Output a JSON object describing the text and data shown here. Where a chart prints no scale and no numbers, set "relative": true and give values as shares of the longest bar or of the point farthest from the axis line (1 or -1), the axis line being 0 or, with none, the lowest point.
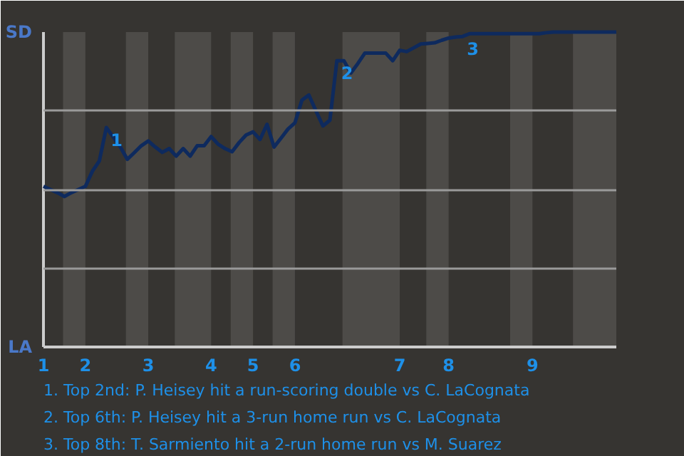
{
  "chart_data": {
    "type": "line",
    "relative": true,
    "categories": [
      "1",
      null,
      null,
      null,
      null,
      null,
      "2",
      null,
      null,
      null,
      null,
      null,
      null,
      null,
      null,
      "3",
      null,
      null,
      null,
      null,
      null,
      null,
      null,
      null,
      "4",
      null,
      null,
      null,
      null,
      null,
      "5",
      null,
      null,
      null,
      null,
      null,
      "6",
      null,
      null,
      null,
      null,
      null,
      null,
      null,
      null,
      null,
      null,
      null,
      null,
      null,
      null,
      "7",
      null,
      null,
      null,
      null,
      null,
      null,
      "8",
      null,
      null,
      null,
      null,
      null,
      null,
      null,
      null,
      null,
      null,
      null,
      "9",
      null,
      null,
      null,
      null,
      null,
      null,
      null,
      null,
      null,
      null,
      null,
      null
    ],
    "series": [
      {
        "color": "#0e2a5e",
        "values": [
          0.51,
          0.5,
          0.49,
          0.478,
          0.49,
          0.5,
          0.51,
          0.558,
          0.591,
          0.697,
          0.666,
          0.635,
          0.596,
          0.617,
          0.639,
          0.654,
          0.635,
          0.618,
          0.63,
          0.606,
          0.63,
          0.606,
          0.639,
          0.639,
          0.668,
          0.644,
          0.63,
          0.62,
          0.649,
          0.673,
          0.683,
          0.659,
          0.707,
          0.635,
          0.663,
          0.692,
          0.712,
          0.784,
          0.8,
          0.75,
          0.702,
          0.72,
          0.909,
          0.909,
          0.87,
          0.9,
          0.933,
          0.933,
          0.933,
          0.933,
          0.909,
          0.942,
          0.938,
          0.95,
          0.962,
          0.964,
          0.966,
          0.974,
          0.981,
          0.984,
          0.986,
          0.995,
          0.995,
          0.995,
          0.995,
          0.995,
          0.995,
          0.995,
          0.995,
          0.995,
          0.995,
          0.995,
          0.998,
          1.0,
          1.0,
          1.0,
          1.0,
          1.0,
          1.0,
          1.0,
          1.0,
          1.0,
          1.0
        ]
      }
    ],
    "grid": "y",
    "marker": "none",
    "annotations": [
      "SD",
      "LA",
      {
        "text": "1",
        "y": 0.697
      },
      {
        "text": "2",
        "y": 0.909
      },
      {
        "text": "3",
        "y": 0.986
      },
      "1. Top 2nd: P. Heisey hit a run-scoring double vs C. LaCognata",
      "2. Top 6th: P. Heisey hit a 3-run home run vs C. LaCognata",
      "3. Top 8th: T. Sarmiento hit a 2-run home run vs M. Suarez"
    ]
  }
}
